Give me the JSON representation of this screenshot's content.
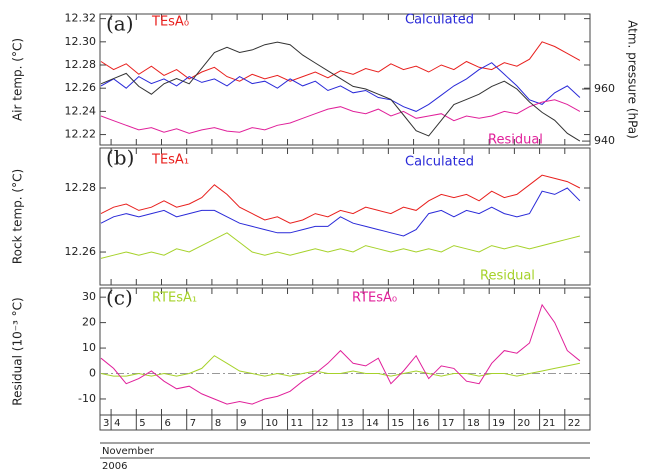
{
  "chart_data": [
    {
      "type": "line",
      "panel_label": "(a)",
      "ylabel": "Air temp. (°C)",
      "y2label": "Atm. pressure (hPa)",
      "xlim": [
        3.56,
        23.0
      ],
      "ylim": [
        12.211,
        12.324
      ],
      "yticks": [
        12.22,
        12.24,
        12.26,
        12.28,
        {
          "value": 12.3,
          "label": "12.30"
        },
        12.32
      ],
      "y2lim": [
        938.5,
        988.8
      ],
      "y2ticks": [
        940,
        960
      ],
      "x": [
        3.6,
        4.1,
        4.6,
        5.1,
        5.6,
        6.1,
        6.6,
        7.1,
        7.6,
        8.1,
        8.6,
        9.1,
        9.6,
        10.1,
        10.6,
        11.1,
        11.6,
        12.1,
        12.6,
        13.1,
        13.6,
        14.1,
        14.6,
        15.1,
        15.6,
        16.1,
        16.6,
        17.1,
        17.6,
        18.1,
        18.6,
        19.1,
        19.6,
        20.1,
        20.6,
        21.1,
        21.6,
        22.1,
        22.6
      ],
      "series": [
        {
          "name": "TEsA₀",
          "color": "#e8201e",
          "values": [
            12.283,
            12.276,
            12.281,
            12.272,
            12.279,
            12.271,
            12.276,
            12.268,
            12.274,
            12.278,
            12.27,
            12.266,
            12.272,
            12.268,
            12.271,
            12.266,
            12.27,
            12.274,
            12.269,
            12.275,
            12.272,
            12.277,
            12.274,
            12.281,
            12.276,
            12.279,
            12.274,
            12.28,
            12.276,
            12.283,
            12.278,
            12.276,
            12.282,
            12.279,
            12.285,
            12.3,
            12.296,
            12.29,
            12.284
          ]
        },
        {
          "name": "Calculated",
          "color": "#2a2ad8",
          "values": [
            12.262,
            12.268,
            12.26,
            12.27,
            12.264,
            12.268,
            12.262,
            12.27,
            12.265,
            12.268,
            12.262,
            12.27,
            12.264,
            12.266,
            12.26,
            12.268,
            12.262,
            12.266,
            12.258,
            12.262,
            12.256,
            12.258,
            12.252,
            12.25,
            12.244,
            12.24,
            12.246,
            12.254,
            12.262,
            12.268,
            12.276,
            12.282,
            12.272,
            12.262,
            12.25,
            12.246,
            12.256,
            12.262,
            12.252
          ]
        },
        {
          "name": "Residual",
          "color": "#e0209a",
          "values": [
            12.236,
            12.232,
            12.228,
            12.224,
            12.226,
            12.222,
            12.225,
            12.221,
            12.224,
            12.226,
            12.223,
            12.222,
            12.226,
            12.224,
            12.228,
            12.23,
            12.234,
            12.238,
            12.242,
            12.244,
            12.24,
            12.238,
            12.242,
            12.236,
            12.24,
            12.234,
            12.236,
            12.238,
            12.232,
            12.236,
            12.234,
            12.236,
            12.24,
            12.238,
            12.244,
            12.248,
            12.25,
            12.246,
            12.24
          ]
        },
        {
          "color": "#333333",
          "axis": "y2",
          "values": [
            962,
            964,
            966,
            961,
            958,
            962,
            964,
            962,
            968,
            974,
            976,
            974,
            975,
            977,
            978,
            977,
            973,
            970,
            967,
            964,
            961,
            960,
            958,
            956,
            950,
            944,
            942,
            948,
            954,
            956,
            958,
            961,
            963,
            960,
            955,
            951,
            948,
            943,
            940
          ]
        }
      ]
    },
    {
      "type": "line",
      "panel_label": "(b)",
      "ylabel": "Rock temp. (°C)",
      "xlim": [
        3.56,
        23.0
      ],
      "ylim": [
        12.2497,
        12.2925
      ],
      "yticks": [
        12.26,
        12.28
      ],
      "x": [
        3.6,
        4.1,
        4.6,
        5.1,
        5.6,
        6.1,
        6.6,
        7.1,
        7.6,
        8.1,
        8.6,
        9.1,
        9.6,
        10.1,
        10.6,
        11.1,
        11.6,
        12.1,
        12.6,
        13.1,
        13.6,
        14.1,
        14.6,
        15.1,
        15.6,
        16.1,
        16.6,
        17.1,
        17.6,
        18.1,
        18.6,
        19.1,
        19.6,
        20.1,
        20.6,
        21.1,
        21.6,
        22.1,
        22.6
      ],
      "series": [
        {
          "name": "TEsA₁",
          "color": "#e8201e",
          "values": [
            12.272,
            12.274,
            12.275,
            12.273,
            12.274,
            12.276,
            12.274,
            12.275,
            12.277,
            12.281,
            12.278,
            12.274,
            12.272,
            12.27,
            12.271,
            12.269,
            12.27,
            12.272,
            12.271,
            12.273,
            12.272,
            12.274,
            12.273,
            12.272,
            12.274,
            12.273,
            12.276,
            12.278,
            12.277,
            12.278,
            12.276,
            12.279,
            12.277,
            12.278,
            12.281,
            12.284,
            12.283,
            12.282,
            12.28
          ]
        },
        {
          "name": "Calculated",
          "color": "#2a2ad8",
          "values": [
            12.269,
            12.271,
            12.272,
            12.271,
            12.272,
            12.273,
            12.271,
            12.272,
            12.273,
            12.273,
            12.271,
            12.269,
            12.268,
            12.267,
            12.266,
            12.266,
            12.267,
            12.268,
            12.268,
            12.271,
            12.269,
            12.268,
            12.267,
            12.266,
            12.265,
            12.267,
            12.272,
            12.273,
            12.271,
            12.273,
            12.272,
            12.274,
            12.272,
            12.271,
            12.272,
            12.279,
            12.278,
            12.28,
            12.276
          ]
        },
        {
          "name": "Residual",
          "color": "#a6d22a",
          "values": [
            12.258,
            12.259,
            12.26,
            12.259,
            12.26,
            12.259,
            12.261,
            12.26,
            12.262,
            12.264,
            12.266,
            12.263,
            12.26,
            12.259,
            12.26,
            12.259,
            12.26,
            12.261,
            12.26,
            12.261,
            12.26,
            12.262,
            12.261,
            12.26,
            12.261,
            12.26,
            12.261,
            12.26,
            12.262,
            12.261,
            12.26,
            12.262,
            12.261,
            12.262,
            12.261,
            12.262,
            12.263,
            12.264,
            12.265
          ]
        }
      ]
    },
    {
      "type": "line",
      "panel_label": "(c)",
      "ylabel": "Residual (10⁻³ °C)",
      "zero_line": true,
      "xlim": [
        3.56,
        23.0
      ],
      "ylim": [
        -16.3,
        33.6
      ],
      "yticks": [
        -10,
        0,
        10,
        20,
        30
      ],
      "xticks": [
        {
          "value": 3,
          "label": "3"
        },
        4,
        5,
        6,
        7,
        8,
        9,
        10,
        11,
        12,
        13,
        14,
        15,
        16,
        17,
        18,
        19,
        20,
        21,
        22
      ],
      "xlabel": "November",
      "xlabel2": "2006",
      "x": [
        3.6,
        4.1,
        4.6,
        5.1,
        5.6,
        6.1,
        6.6,
        7.1,
        7.6,
        8.1,
        8.6,
        9.1,
        9.6,
        10.1,
        10.6,
        11.1,
        11.6,
        12.1,
        12.6,
        13.1,
        13.6,
        14.1,
        14.6,
        15.1,
        15.6,
        16.1,
        16.6,
        17.1,
        17.6,
        18.1,
        18.6,
        19.1,
        19.6,
        20.1,
        20.6,
        21.1,
        21.6,
        22.1,
        22.6
      ],
      "series": [
        {
          "name": "RTEsA₁",
          "color": "#a6d22a",
          "values": [
            0,
            -1,
            -1,
            0,
            -1,
            0,
            -1,
            0,
            2,
            7,
            4,
            1,
            0,
            -1,
            0,
            -1,
            0,
            1,
            0,
            0,
            1,
            0,
            0,
            -1,
            0,
            1,
            0,
            -1,
            0,
            0,
            -1,
            0,
            0,
            -1,
            0,
            1,
            2,
            3,
            4
          ]
        },
        {
          "name": "RTEsA₀",
          "color": "#e0209a",
          "values": [
            6,
            2,
            -4,
            -2,
            1,
            -3,
            -6,
            -5,
            -8,
            -10,
            -12,
            -11,
            -12,
            -10,
            -9,
            -7,
            -3,
            0,
            4,
            9,
            4,
            3,
            6,
            -4,
            1,
            7,
            -2,
            3,
            2,
            -3,
            -4,
            4,
            9,
            8,
            12,
            27,
            20,
            9,
            5
          ]
        }
      ]
    }
  ]
}
